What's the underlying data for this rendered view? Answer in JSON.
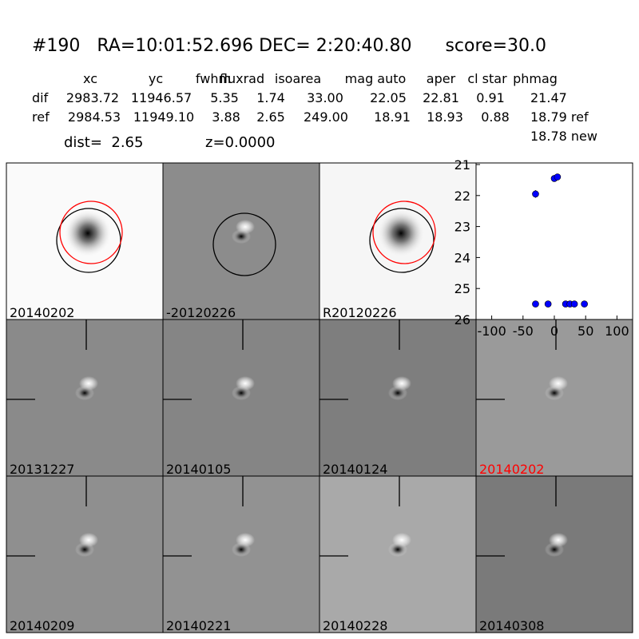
{
  "header": {
    "title": "#190   RA=10:01:52.696 DEC= 2:20:40.80      score=30.0"
  },
  "table": {
    "columns": [
      "xc",
      "yc",
      "fwhm",
      "fluxrad",
      "isoarea",
      "mag auto",
      "aper",
      "cl star",
      "phmag"
    ],
    "rows": [
      {
        "label": "dif",
        "cells": [
          "2983.72",
          "11946.57",
          "5.35",
          "1.74",
          "33.00",
          "22.05",
          "22.81",
          "0.91",
          "21.47"
        ]
      },
      {
        "label": "ref",
        "cells": [
          "2984.53",
          "11949.10",
          "3.88",
          "2.65",
          "249.00",
          "18.91",
          "18.93",
          "0.88",
          "18.79 ref"
        ]
      }
    ],
    "extra": "18.78 new"
  },
  "info": {
    "dist": "dist=  2.65",
    "z": "z=0.0000"
  },
  "panels": [
    {
      "label": "20140202",
      "label_color": "#000000"
    },
    {
      "label": "-20120226",
      "label_color": "#000000"
    },
    {
      "label": "R20120226",
      "label_color": "#000000"
    },
    {
      "label": "20131227",
      "label_color": "#000000"
    },
    {
      "label": "20140105",
      "label_color": "#000000"
    },
    {
      "label": "20140124",
      "label_color": "#000000"
    },
    {
      "label": "20140202",
      "label_color": "#ff0000"
    },
    {
      "label": "20140209",
      "label_color": "#000000"
    },
    {
      "label": "20140221",
      "label_color": "#000000"
    },
    {
      "label": "20140228",
      "label_color": "#000000"
    },
    {
      "label": "20140308",
      "label_color": "#000000"
    }
  ],
  "chart_data": {
    "type": "scatter",
    "series": [
      {
        "color": "#0000ff",
        "x": [
          -30,
          -10,
          18,
          25,
          32,
          48,
          -30,
          0,
          5
        ],
        "values": [
          25.5,
          25.5,
          25.5,
          25.5,
          25.5,
          25.5,
          21.95,
          21.45,
          21.4
        ],
        "errors": [
          0.05,
          0.05,
          0.05,
          0.05,
          0.05,
          0.05,
          0.12,
          0.08,
          0.08
        ]
      }
    ],
    "xlim": [
      -125,
      125
    ],
    "xticks": [
      -100,
      -50,
      0,
      50,
      100
    ],
    "ylim": [
      21,
      26
    ],
    "yticks": [
      21,
      22,
      23,
      24,
      25,
      26
    ],
    "invert_y": true,
    "grid": false
  }
}
